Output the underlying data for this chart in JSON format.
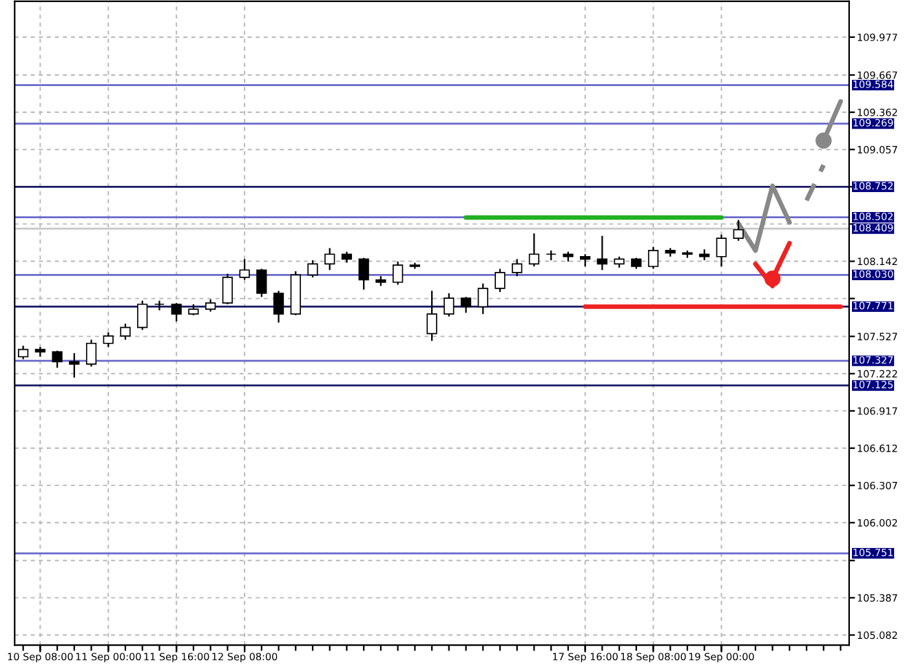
{
  "chart_data": {
    "type": "candlestick",
    "categories": [
      null,
      "10 Sep 08:00",
      null,
      null,
      null,
      "11 Sep 00:00",
      null,
      null,
      null,
      "11 Sep 16:00",
      null,
      null,
      null,
      "12 Sep 08:00",
      null,
      null,
      null,
      null,
      null,
      null,
      null,
      null,
      null,
      null,
      null,
      null,
      null,
      null,
      null,
      null,
      null,
      null,
      null,
      "17 Sep 16:00",
      null,
      null,
      null,
      "18 Sep 08:00",
      null,
      null,
      null,
      "19 Sep 00:00",
      null,
      null,
      null,
      null,
      null,
      null,
      null
    ],
    "ohlc": [
      [
        107.36,
        107.45,
        107.34,
        107.42
      ],
      [
        107.42,
        107.44,
        107.36,
        107.4
      ],
      [
        107.4,
        107.41,
        107.27,
        107.32
      ],
      [
        107.32,
        107.39,
        107.19,
        107.3
      ],
      [
        107.3,
        107.5,
        107.28,
        107.47
      ],
      [
        107.47,
        107.56,
        107.44,
        107.53
      ],
      [
        107.53,
        107.63,
        107.5,
        107.6
      ],
      [
        107.6,
        107.82,
        107.58,
        107.79
      ],
      [
        107.79,
        107.82,
        107.74,
        107.79
      ],
      [
        107.79,
        107.8,
        107.65,
        107.71
      ],
      [
        107.71,
        107.79,
        107.7,
        107.75
      ],
      [
        107.75,
        107.83,
        107.73,
        107.8
      ],
      [
        107.8,
        108.04,
        107.79,
        108.01
      ],
      [
        108.01,
        108.16,
        107.99,
        108.07
      ],
      [
        108.07,
        108.08,
        107.85,
        107.88
      ],
      [
        107.88,
        107.9,
        107.64,
        107.71
      ],
      [
        107.71,
        108.06,
        107.7,
        108.03
      ],
      [
        108.03,
        108.15,
        108.01,
        108.12
      ],
      [
        108.12,
        108.25,
        108.07,
        108.2
      ],
      [
        108.2,
        108.22,
        108.13,
        108.16
      ],
      [
        108.16,
        108.17,
        107.91,
        107.99
      ],
      [
        107.99,
        108.02,
        107.94,
        107.97
      ],
      [
        107.97,
        108.14,
        107.95,
        108.11
      ],
      [
        108.11,
        108.13,
        108.08,
        108.1
      ],
      [
        107.55,
        107.9,
        107.49,
        107.71
      ],
      [
        107.71,
        107.88,
        107.69,
        107.84
      ],
      [
        107.84,
        107.85,
        107.72,
        107.77
      ],
      [
        107.77,
        107.96,
        107.71,
        107.92
      ],
      [
        107.92,
        108.08,
        107.89,
        108.05
      ],
      [
        108.05,
        108.16,
        108.02,
        108.12
      ],
      [
        108.12,
        108.37,
        108.1,
        108.2
      ],
      [
        108.2,
        108.23,
        108.15,
        108.2
      ],
      [
        108.2,
        108.22,
        108.14,
        108.18
      ],
      [
        108.18,
        108.2,
        108.1,
        108.16
      ],
      [
        108.16,
        108.35,
        108.07,
        108.12
      ],
      [
        108.12,
        108.18,
        108.09,
        108.16
      ],
      [
        108.16,
        108.17,
        108.08,
        108.1
      ],
      [
        108.1,
        108.26,
        108.08,
        108.23
      ],
      [
        108.23,
        108.25,
        108.18,
        108.21
      ],
      [
        108.21,
        108.23,
        108.17,
        108.2
      ],
      [
        108.2,
        108.24,
        108.15,
        108.18
      ],
      [
        108.18,
        108.36,
        108.1,
        108.33
      ],
      [
        108.33,
        108.48,
        108.31,
        108.4
      ],
      null,
      null,
      null,
      null,
      null,
      null
    ],
    "series": [
      {
        "type": "line",
        "color": "#22b022",
        "values": [
          null,
          null,
          null,
          null,
          null,
          null,
          null,
          null,
          null,
          null,
          null,
          null,
          null,
          null,
          null,
          null,
          null,
          null,
          null,
          null,
          null,
          null,
          null,
          null,
          null,
          null,
          108.5,
          108.5,
          108.5,
          108.5,
          108.5,
          108.5,
          108.5,
          108.5,
          108.5,
          108.5,
          108.5,
          108.5,
          108.5,
          108.5,
          108.5,
          108.5,
          null,
          null,
          null,
          null,
          null,
          null,
          null
        ],
        "line_style": "solid"
      },
      {
        "type": "line",
        "color": "#ee2222",
        "values": [
          null,
          null,
          null,
          null,
          null,
          null,
          null,
          null,
          null,
          null,
          null,
          null,
          null,
          null,
          null,
          null,
          null,
          null,
          null,
          null,
          null,
          null,
          null,
          null,
          null,
          null,
          null,
          null,
          null,
          null,
          null,
          null,
          null,
          107.77,
          107.77,
          107.77,
          107.77,
          107.77,
          107.77,
          107.77,
          107.77,
          107.77,
          107.77,
          107.77,
          107.77,
          107.77,
          107.77,
          107.77,
          107.77
        ],
        "line_style": "solid"
      },
      {
        "type": "line",
        "color": "#888888",
        "values": [
          null,
          null,
          null,
          null,
          null,
          null,
          null,
          null,
          null,
          null,
          null,
          null,
          null,
          null,
          null,
          null,
          null,
          null,
          null,
          null,
          null,
          null,
          null,
          null,
          null,
          null,
          null,
          null,
          null,
          null,
          null,
          null,
          null,
          null,
          null,
          null,
          null,
          null,
          null,
          null,
          null,
          null,
          108.45,
          108.23,
          108.76,
          108.46,
          null,
          null,
          null
        ],
        "line_style": "solid"
      },
      {
        "type": "line",
        "color": "#888888",
        "values": [
          null,
          null,
          null,
          null,
          null,
          null,
          null,
          null,
          null,
          null,
          null,
          null,
          null,
          null,
          null,
          null,
          null,
          null,
          null,
          null,
          null,
          null,
          null,
          null,
          null,
          null,
          null,
          null,
          null,
          null,
          null,
          null,
          null,
          null,
          null,
          null,
          null,
          null,
          null,
          null,
          null,
          null,
          null,
          null,
          null,
          null,
          108.64,
          108.93,
          null
        ],
        "line_style": "dashed"
      },
      {
        "type": "line",
        "color": "#888888",
        "values": [
          null,
          null,
          null,
          null,
          null,
          null,
          null,
          null,
          null,
          null,
          null,
          null,
          null,
          null,
          null,
          null,
          null,
          null,
          null,
          null,
          null,
          null,
          null,
          null,
          null,
          null,
          null,
          null,
          null,
          null,
          null,
          null,
          null,
          null,
          null,
          null,
          null,
          null,
          null,
          null,
          null,
          null,
          null,
          null,
          null,
          null,
          null,
          109.13,
          109.45
        ],
        "line_style": "solid"
      },
      {
        "type": "scatter",
        "color": "#888888",
        "values": [
          null,
          null,
          null,
          null,
          null,
          null,
          null,
          null,
          null,
          null,
          null,
          null,
          null,
          null,
          null,
          null,
          null,
          null,
          null,
          null,
          null,
          null,
          null,
          null,
          null,
          null,
          null,
          null,
          null,
          null,
          null,
          null,
          null,
          null,
          null,
          null,
          null,
          null,
          null,
          null,
          null,
          null,
          null,
          null,
          null,
          null,
          null,
          109.13,
          null
        ],
        "marker": "circle"
      },
      {
        "type": "line",
        "color": "#ee2222",
        "values": [
          null,
          null,
          null,
          null,
          null,
          null,
          null,
          null,
          null,
          null,
          null,
          null,
          null,
          null,
          null,
          null,
          null,
          null,
          null,
          null,
          null,
          null,
          null,
          null,
          null,
          null,
          null,
          null,
          null,
          null,
          null,
          null,
          null,
          null,
          null,
          null,
          null,
          null,
          null,
          null,
          null,
          null,
          null,
          108.12,
          107.94,
          null,
          null,
          null,
          null
        ],
        "line_style": "solid"
      },
      {
        "type": "line",
        "color": "#ee2222",
        "values": [
          null,
          null,
          null,
          null,
          null,
          null,
          null,
          null,
          null,
          null,
          null,
          null,
          null,
          null,
          null,
          null,
          null,
          null,
          null,
          null,
          null,
          null,
          null,
          null,
          null,
          null,
          null,
          null,
          null,
          null,
          null,
          null,
          null,
          null,
          null,
          null,
          null,
          null,
          null,
          null,
          null,
          null,
          null,
          null,
          108.0,
          108.29,
          null,
          null,
          null
        ],
        "line_style": "solid"
      },
      {
        "type": "scatter",
        "color": "#ee2222",
        "values": [
          null,
          null,
          null,
          null,
          null,
          null,
          null,
          null,
          null,
          null,
          null,
          null,
          null,
          null,
          null,
          null,
          null,
          null,
          null,
          null,
          null,
          null,
          null,
          null,
          null,
          null,
          null,
          null,
          null,
          null,
          null,
          null,
          null,
          null,
          null,
          null,
          null,
          null,
          null,
          null,
          null,
          null,
          null,
          null,
          108.0,
          null,
          null,
          null,
          null
        ],
        "marker": "circle"
      }
    ],
    "ref_lines": [
      {
        "axis": "y",
        "value": 109.584,
        "label": "109.584",
        "color": "#6a6acd"
      },
      {
        "axis": "y",
        "value": 109.269,
        "label": "109.269",
        "color": "#6a6acd"
      },
      {
        "axis": "y",
        "value": 108.752,
        "label": "108.752",
        "color": "#1a1a66"
      },
      {
        "axis": "y",
        "value": 108.502,
        "label": "108.502",
        "color": "#6a6acd"
      },
      {
        "axis": "y",
        "value": 108.409,
        "label": "108.409",
        "color": "#c8c8c8"
      },
      {
        "axis": "y",
        "value": 108.03,
        "label": "108.030",
        "color": "#6a6acd"
      },
      {
        "axis": "y",
        "value": 107.771,
        "label": "107.771",
        "color": "#1a1a66"
      },
      {
        "axis": "y",
        "value": 107.327,
        "label": "107.327",
        "color": "#6a6acd"
      },
      {
        "axis": "y",
        "value": 107.125,
        "label": "107.125",
        "color": "#1a1a66"
      },
      {
        "axis": "y",
        "value": 105.751,
        "label": "105.751",
        "color": "#6a6acd"
      }
    ],
    "ylim": [
      105.0,
      110.27
    ],
    "yticks": [
      109.977,
      109.667,
      109.362,
      109.057,
      {
        "value": 108.752,
        "label": null
      },
      {
        "value": 108.447,
        "label": null
      },
      108.142,
      {
        "value": 107.837,
        "label": null
      },
      107.527,
      107.222,
      106.917,
      106.612,
      106.307,
      106.002,
      {
        "value": 105.692,
        "label": null
      },
      105.387,
      105.082
    ],
    "grid": true
  }
}
